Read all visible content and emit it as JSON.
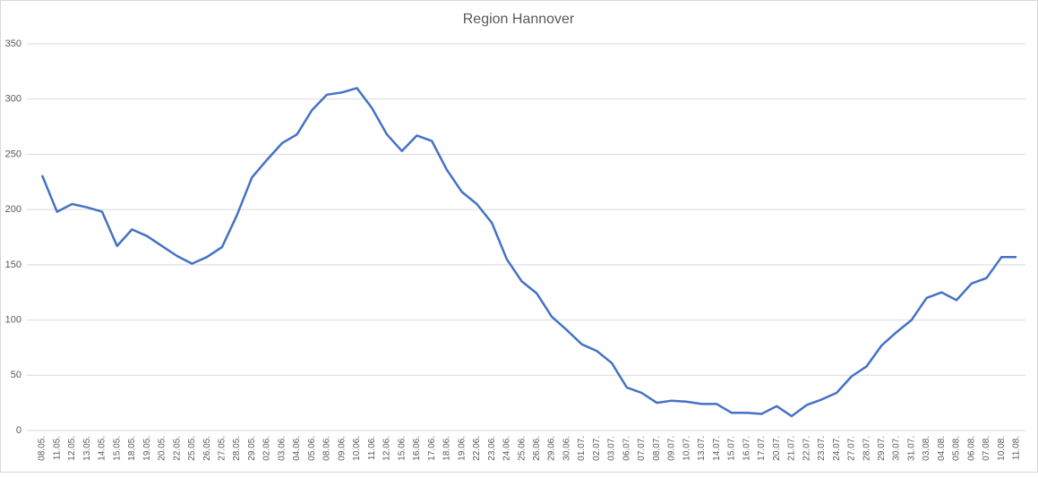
{
  "chart_data": {
    "type": "line",
    "title": "Region Hannover",
    "categories": [
      "08.05.",
      "11.05.",
      "12.05.",
      "13.05.",
      "14.05.",
      "15.05.",
      "18.05.",
      "19.05.",
      "20.05.",
      "22.05.",
      "25.05.",
      "26.05.",
      "27.05.",
      "28.05.",
      "29.05.",
      "02.06.",
      "03.06.",
      "04.06.",
      "05.06.",
      "08.06.",
      "09.06.",
      "10.06.",
      "11.06.",
      "12.06.",
      "15.06.",
      "16.06.",
      "17.06.",
      "18.06.",
      "19.06.",
      "22.06.",
      "23.06.",
      "24.06.",
      "25.06.",
      "26.06.",
      "29.06.",
      "30.06.",
      "01.07.",
      "02.07.",
      "03.07.",
      "06.07.",
      "07.07.",
      "08.07.",
      "09.07.",
      "10.07.",
      "13.07.",
      "14.07.",
      "15.07.",
      "16.07.",
      "17.07.",
      "20.07.",
      "21.07.",
      "22.07.",
      "23.07.",
      "24.07.",
      "27.07.",
      "28.07.",
      "29.07.",
      "30.07.",
      "31.07.",
      "03.08.",
      "04.08.",
      "05.08.",
      "06.08.",
      "07.08.",
      "10.08.",
      "11.08."
    ],
    "values": [
      231,
      198,
      205,
      202,
      198,
      167,
      182,
      176,
      167,
      158,
      151,
      157,
      166,
      195,
      229,
      245,
      260,
      268,
      290,
      304,
      306,
      310,
      292,
      268,
      253,
      267,
      262,
      236,
      216,
      205,
      188,
      155,
      135,
      124,
      103,
      91,
      78,
      72,
      61,
      39,
      34,
      25,
      27,
      26,
      24,
      24,
      16,
      16,
      15,
      22,
      13,
      23,
      28,
      34,
      49,
      58,
      77,
      89,
      100,
      120,
      125,
      118,
      133,
      138,
      157,
      157
    ],
    "color": "#4472c4",
    "ylim": [
      0,
      350
    ],
    "yticks": [
      0,
      50,
      100,
      150,
      200,
      250,
      300,
      350
    ],
    "grid": true
  }
}
